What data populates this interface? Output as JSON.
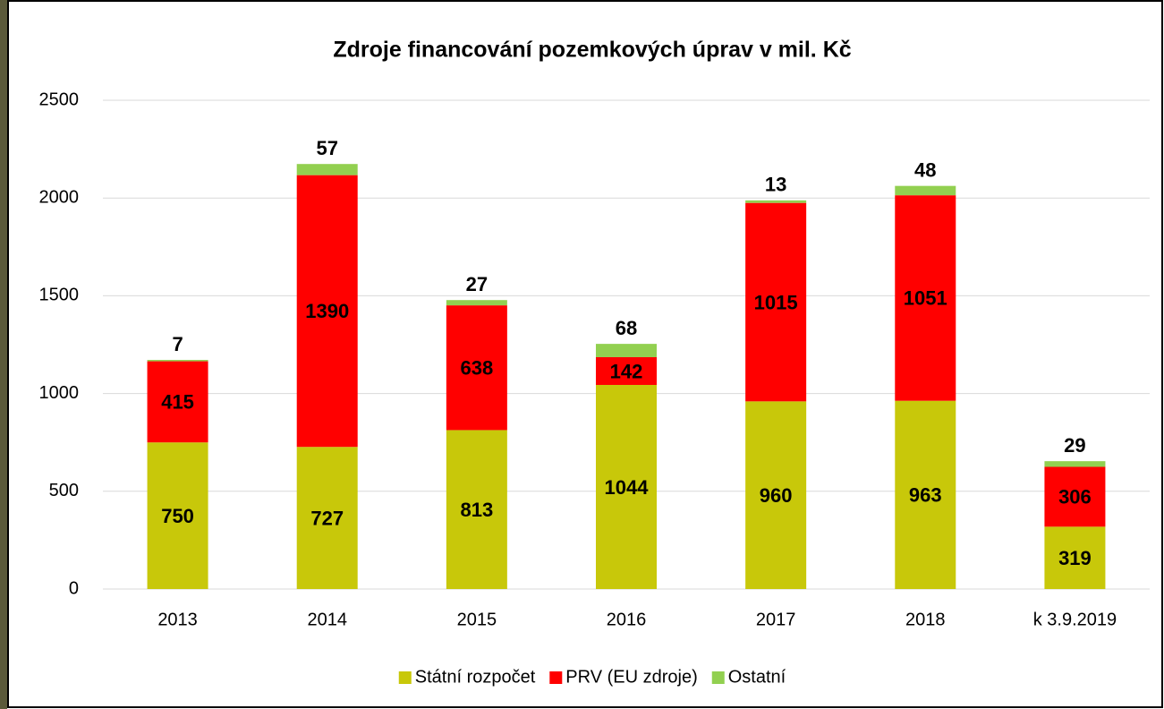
{
  "chart_data": {
    "type": "stacked_bar",
    "title": "Zdroje financování pozemkových úprav v mil. Kč",
    "categories": [
      "2013",
      "2014",
      "2015",
      "2016",
      "2017",
      "2018",
      "k 3.9.2019"
    ],
    "series": [
      {
        "name": "Státní rozpočet",
        "color": "#c8c80a",
        "values": [
          750,
          727,
          813,
          1044,
          960,
          963,
          319
        ]
      },
      {
        "name": "PRV (EU zdroje)",
        "color": "#ff0000",
        "values": [
          415,
          1390,
          638,
          142,
          1015,
          1051,
          306
        ]
      },
      {
        "name": "Ostatní",
        "color": "#92d050",
        "values": [
          7,
          57,
          27,
          68,
          13,
          48,
          29
        ]
      }
    ],
    "ylim": [
      0,
      2500
    ],
    "yticks": [
      0,
      500,
      1000,
      1500,
      2000,
      2500
    ],
    "grid": true,
    "legend": "bottom"
  }
}
